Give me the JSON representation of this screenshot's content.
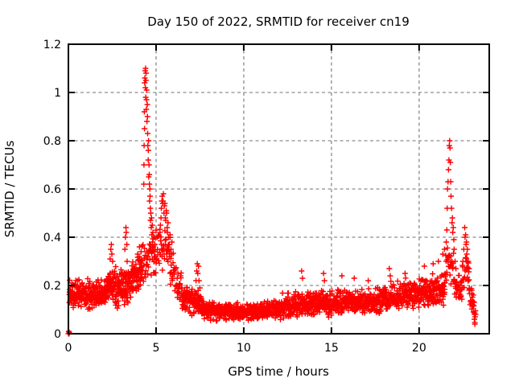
{
  "chart_data": {
    "type": "scatter",
    "title": "Day 150 of 2022, SRMTID for receiver cn19",
    "xlabel": "GPS time / hours",
    "ylabel": "SRMTID / TECUs",
    "xlim": [
      0,
      24
    ],
    "ylim": [
      0,
      1.2
    ],
    "xtick_values": [
      0,
      5,
      10,
      15,
      20
    ],
    "xtick_labels": [
      "0",
      "5",
      "10",
      "15",
      "20"
    ],
    "ytick_values": [
      0,
      0.2,
      0.4,
      0.6,
      0.8,
      1.0,
      1.2
    ],
    "ytick_labels": [
      "0",
      "0.2",
      "0.4",
      "0.6",
      "0.8",
      "1",
      "1.2"
    ],
    "grid": true,
    "legend": "none",
    "marker": {
      "symbol": "plus",
      "color": "#ff0000",
      "size": 7,
      "stroke": 1.4
    },
    "grid_color": "#a0a0a0",
    "axis_color": "#000000",
    "background_color": "#ffffff",
    "seed": 11,
    "points": [
      [
        0.0,
        0.0
      ],
      [
        0.02,
        0.0
      ],
      [
        0.04,
        0.0
      ],
      [
        0.02,
        0.01
      ],
      [
        0.05,
        0.005
      ],
      [
        0.08,
        0.13
      ],
      [
        0.12,
        0.18
      ],
      [
        0.15,
        0.16
      ],
      [
        0.2,
        0.21
      ],
      [
        0.25,
        0.15
      ],
      [
        2.38,
        0.31
      ],
      [
        2.42,
        0.35
      ],
      [
        2.45,
        0.37
      ],
      [
        2.48,
        0.33
      ],
      [
        2.52,
        0.3
      ],
      [
        3.22,
        0.35
      ],
      [
        3.25,
        0.4
      ],
      [
        3.28,
        0.44
      ],
      [
        3.3,
        0.42
      ],
      [
        3.33,
        0.37
      ],
      [
        3.35,
        0.3
      ],
      [
        3.95,
        0.33
      ],
      [
        4.05,
        0.36
      ],
      [
        4.1,
        0.3
      ],
      [
        4.15,
        0.34
      ],
      [
        4.3,
        0.62
      ],
      [
        4.31,
        0.7
      ],
      [
        4.32,
        0.78
      ],
      [
        4.33,
        0.92
      ],
      [
        4.34,
        0.85
      ],
      [
        4.35,
        1.04
      ],
      [
        4.36,
        1.06
      ],
      [
        4.38,
        1.09
      ],
      [
        4.39,
        1.02
      ],
      [
        4.4,
        1.1
      ],
      [
        4.41,
        0.98
      ],
      [
        4.42,
        1.05
      ],
      [
        4.43,
        1.08
      ],
      [
        4.44,
        0.93
      ],
      [
        4.45,
        0.97
      ],
      [
        4.46,
        1.01
      ],
      [
        4.48,
        0.88
      ],
      [
        4.5,
        0.95
      ],
      [
        4.51,
        0.9
      ],
      [
        4.52,
        0.83
      ],
      [
        4.53,
        0.78
      ],
      [
        4.55,
        0.72
      ],
      [
        4.56,
        0.76
      ],
      [
        4.57,
        0.8
      ],
      [
        4.58,
        0.65
      ],
      [
        4.6,
        0.7
      ],
      [
        4.61,
        0.66
      ],
      [
        4.62,
        0.62
      ],
      [
        4.63,
        0.55
      ],
      [
        4.65,
        0.6
      ],
      [
        4.66,
        0.57
      ],
      [
        4.67,
        0.52
      ],
      [
        4.68,
        0.47
      ],
      [
        4.7,
        0.5
      ],
      [
        4.72,
        0.44
      ],
      [
        4.74,
        0.48
      ],
      [
        4.76,
        0.41
      ],
      [
        4.78,
        0.45
      ],
      [
        4.8,
        0.38
      ],
      [
        4.82,
        0.42
      ],
      [
        4.85,
        0.36
      ],
      [
        4.88,
        0.4
      ],
      [
        4.9,
        0.34
      ],
      [
        4.93,
        0.37
      ],
      [
        4.96,
        0.32
      ],
      [
        5.22,
        0.42
      ],
      [
        5.25,
        0.45
      ],
      [
        5.28,
        0.48
      ],
      [
        5.3,
        0.52
      ],
      [
        5.33,
        0.55
      ],
      [
        5.35,
        0.57
      ],
      [
        5.38,
        0.54
      ],
      [
        5.4,
        0.55
      ],
      [
        5.42,
        0.58
      ],
      [
        5.45,
        0.5
      ],
      [
        5.48,
        0.53
      ],
      [
        5.5,
        0.54
      ],
      [
        5.53,
        0.48
      ],
      [
        5.55,
        0.47
      ],
      [
        5.58,
        0.51
      ],
      [
        5.6,
        0.5
      ],
      [
        5.63,
        0.44
      ],
      [
        5.65,
        0.42
      ],
      [
        5.68,
        0.46
      ],
      [
        5.72,
        0.4
      ],
      [
        5.75,
        0.37
      ],
      [
        5.8,
        0.41
      ],
      [
        5.85,
        0.35
      ],
      [
        5.9,
        0.38
      ],
      [
        7.28,
        0.22
      ],
      [
        7.32,
        0.26
      ],
      [
        7.35,
        0.29
      ],
      [
        7.38,
        0.25
      ],
      [
        7.42,
        0.28
      ],
      [
        7.45,
        0.22
      ],
      [
        7.5,
        0.19
      ],
      [
        13.3,
        0.26
      ],
      [
        13.35,
        0.23
      ],
      [
        14.55,
        0.25
      ],
      [
        14.6,
        0.22
      ],
      [
        15.6,
        0.24
      ],
      [
        16.3,
        0.23
      ],
      [
        17.1,
        0.22
      ],
      [
        18.3,
        0.27
      ],
      [
        18.35,
        0.24
      ],
      [
        19.2,
        0.25
      ],
      [
        20.3,
        0.28
      ],
      [
        20.8,
        0.29
      ],
      [
        21.1,
        0.3
      ],
      [
        21.35,
        0.33
      ],
      [
        21.45,
        0.35
      ],
      [
        21.55,
        0.38
      ],
      [
        21.58,
        0.43
      ],
      [
        21.6,
        0.52
      ],
      [
        21.62,
        0.6
      ],
      [
        21.65,
        0.63
      ],
      [
        21.68,
        0.68
      ],
      [
        21.7,
        0.72
      ],
      [
        21.72,
        0.78
      ],
      [
        21.74,
        0.8
      ],
      [
        21.76,
        0.77
      ],
      [
        21.78,
        0.71
      ],
      [
        21.8,
        0.63
      ],
      [
        21.82,
        0.57
      ],
      [
        21.85,
        0.52
      ],
      [
        21.88,
        0.46
      ],
      [
        21.9,
        0.48
      ],
      [
        21.92,
        0.42
      ],
      [
        21.95,
        0.44
      ],
      [
        21.98,
        0.39
      ],
      [
        22.0,
        0.35
      ],
      [
        22.05,
        0.3
      ],
      [
        22.1,
        0.27
      ],
      [
        22.5,
        0.3
      ],
      [
        22.55,
        0.35
      ],
      [
        22.6,
        0.44
      ],
      [
        22.62,
        0.4
      ],
      [
        22.65,
        0.41
      ],
      [
        22.68,
        0.37
      ],
      [
        22.7,
        0.38
      ],
      [
        22.72,
        0.33
      ],
      [
        22.75,
        0.35
      ],
      [
        22.8,
        0.3
      ],
      [
        22.85,
        0.27
      ],
      [
        23.0,
        0.18
      ],
      [
        23.05,
        0.12
      ],
      [
        23.1,
        0.09
      ],
      [
        23.15,
        0.06
      ],
      [
        23.18,
        0.04
      ],
      [
        23.22,
        0.08
      ]
    ],
    "baseline_segments": [
      [
        0.05,
        1.0,
        0.015,
        0.16,
        0.16,
        0.05
      ],
      [
        1.0,
        2.2,
        0.015,
        0.15,
        0.18,
        0.05
      ],
      [
        2.2,
        2.7,
        0.015,
        0.2,
        0.21,
        0.06
      ],
      [
        2.7,
        3.4,
        0.015,
        0.17,
        0.19,
        0.06
      ],
      [
        3.4,
        4.2,
        0.015,
        0.21,
        0.28,
        0.07
      ],
      [
        4.2,
        5.0,
        0.02,
        0.3,
        0.34,
        0.1
      ],
      [
        5.0,
        5.8,
        0.02,
        0.36,
        0.33,
        0.09
      ],
      [
        5.8,
        6.5,
        0.015,
        0.28,
        0.18,
        0.07
      ],
      [
        6.5,
        7.6,
        0.015,
        0.15,
        0.12,
        0.05
      ],
      [
        7.6,
        9.0,
        0.015,
        0.1,
        0.09,
        0.035
      ],
      [
        9.0,
        11.0,
        0.015,
        0.09,
        0.09,
        0.03
      ],
      [
        11.0,
        12.5,
        0.015,
        0.095,
        0.11,
        0.035
      ],
      [
        12.5,
        14.0,
        0.015,
        0.11,
        0.125,
        0.045
      ],
      [
        14.0,
        16.0,
        0.015,
        0.125,
        0.13,
        0.05
      ],
      [
        16.0,
        18.0,
        0.015,
        0.13,
        0.14,
        0.05
      ],
      [
        18.0,
        19.5,
        0.015,
        0.14,
        0.155,
        0.05
      ],
      [
        19.5,
        20.5,
        0.015,
        0.155,
        0.17,
        0.055
      ],
      [
        20.5,
        21.5,
        0.015,
        0.17,
        0.2,
        0.065
      ],
      [
        21.5,
        22.0,
        0.02,
        0.3,
        0.28,
        0.09
      ],
      [
        22.0,
        22.45,
        0.015,
        0.21,
        0.17,
        0.06
      ],
      [
        22.45,
        22.85,
        0.02,
        0.27,
        0.25,
        0.08
      ],
      [
        22.85,
        23.22,
        0.015,
        0.17,
        0.08,
        0.05
      ],
      [
        0.05,
        2.2,
        0.025,
        0.165,
        0.17,
        0.055
      ],
      [
        2.2,
        4.2,
        0.025,
        0.19,
        0.26,
        0.07
      ],
      [
        6.5,
        7.6,
        0.03,
        0.14,
        0.12,
        0.05
      ],
      [
        7.6,
        12.0,
        0.03,
        0.095,
        0.095,
        0.035
      ],
      [
        12.0,
        18.0,
        0.03,
        0.115,
        0.135,
        0.05
      ],
      [
        18.0,
        21.5,
        0.03,
        0.15,
        0.19,
        0.06
      ]
    ]
  }
}
